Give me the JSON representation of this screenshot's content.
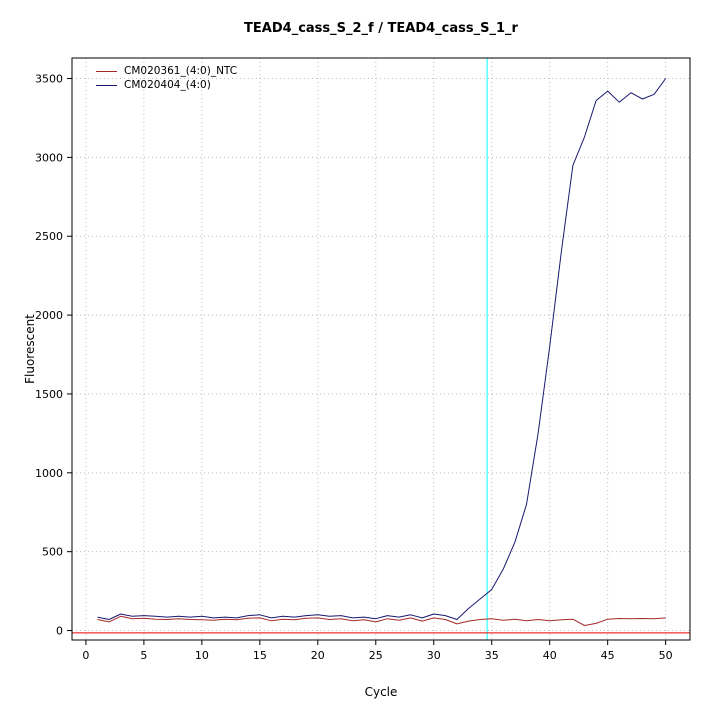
{
  "chart_data": {
    "type": "line",
    "title": "TEAD4_cass_S_2_f / TEAD4_cass_S_1_r",
    "xlabel": "Cycle",
    "ylabel": "Fluorescent",
    "xlim": [
      -1.2,
      52.1
    ],
    "ylim": [
      -60,
      3630
    ],
    "xticks": [
      0,
      5,
      10,
      15,
      20,
      25,
      30,
      35,
      40,
      45,
      50
    ],
    "yticks": [
      0,
      500,
      1000,
      1500,
      2000,
      2500,
      3000,
      3500
    ],
    "grid": "dotted",
    "grid_color": "#bebebe",
    "border_color": "#000000",
    "ct_line": {
      "x": 34.6,
      "color": "#00ffff"
    },
    "threshold_line": {
      "y": -15,
      "color": "#e60000"
    },
    "legend_position": "top-left",
    "x": [
      1,
      2,
      3,
      4,
      5,
      6,
      7,
      8,
      9,
      10,
      11,
      12,
      13,
      14,
      15,
      16,
      17,
      18,
      19,
      20,
      21,
      22,
      23,
      24,
      25,
      26,
      27,
      28,
      29,
      30,
      31,
      32,
      33,
      34,
      35,
      36,
      37,
      38,
      39,
      40,
      41,
      42,
      43,
      44,
      45,
      46,
      47,
      48,
      49,
      50
    ],
    "series": [
      {
        "name": "CM020361_(4:0)_NTC",
        "color": "#a52a2a",
        "values": [
          70,
          55,
          90,
          75,
          78,
          72,
          70,
          75,
          70,
          68,
          65,
          72,
          68,
          78,
          80,
          62,
          72,
          68,
          78,
          80,
          70,
          75,
          62,
          68,
          55,
          75,
          65,
          80,
          60,
          80,
          70,
          42,
          60,
          70,
          75,
          65,
          72,
          62,
          70,
          62,
          68,
          72,
          32,
          45,
          72,
          76,
          75,
          76,
          75,
          80
        ]
      },
      {
        "name": "CM020404_(4:0)",
        "color": "#191970",
        "values": [
          85,
          70,
          105,
          90,
          95,
          90,
          85,
          90,
          85,
          90,
          80,
          85,
          80,
          95,
          100,
          80,
          90,
          85,
          95,
          100,
          90,
          95,
          80,
          85,
          75,
          95,
          85,
          100,
          80,
          105,
          95,
          70,
          140,
          200,
          260,
          390,
          560,
          800,
          1250,
          1800,
          2400,
          2950,
          3130,
          3360,
          3420,
          3350,
          3410,
          3370,
          3400,
          3500
        ]
      }
    ]
  }
}
